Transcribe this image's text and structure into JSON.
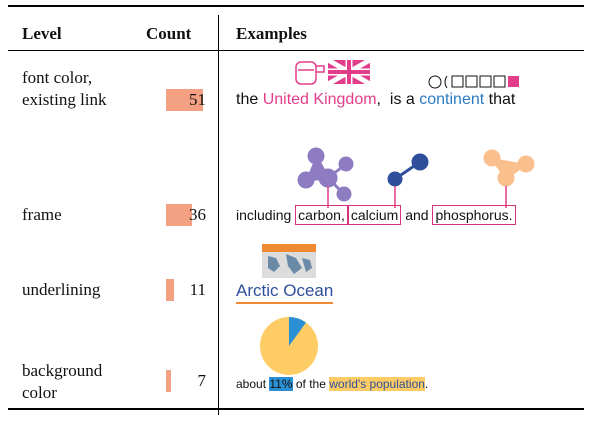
{
  "table": {
    "header": [
      "Level",
      "Count",
      "Examples"
    ],
    "rows": [
      {
        "level": "font color, existing link",
        "count": 51,
        "example": [
          "the",
          "United Kingdom",
          ",",
          "is a",
          "continent",
          "that"
        ]
      },
      {
        "level": "frame",
        "count": 36,
        "example": [
          "including",
          "carbon,",
          "calcium",
          "and",
          "phosphorus."
        ]
      },
      {
        "level": "underlining",
        "count": 11,
        "example": [
          "Arctic Ocean"
        ]
      },
      {
        "level": "background color",
        "count": 7,
        "example": [
          "about",
          "11%",
          "of the",
          "world's population",
          "."
        ]
      }
    ]
  }
}
